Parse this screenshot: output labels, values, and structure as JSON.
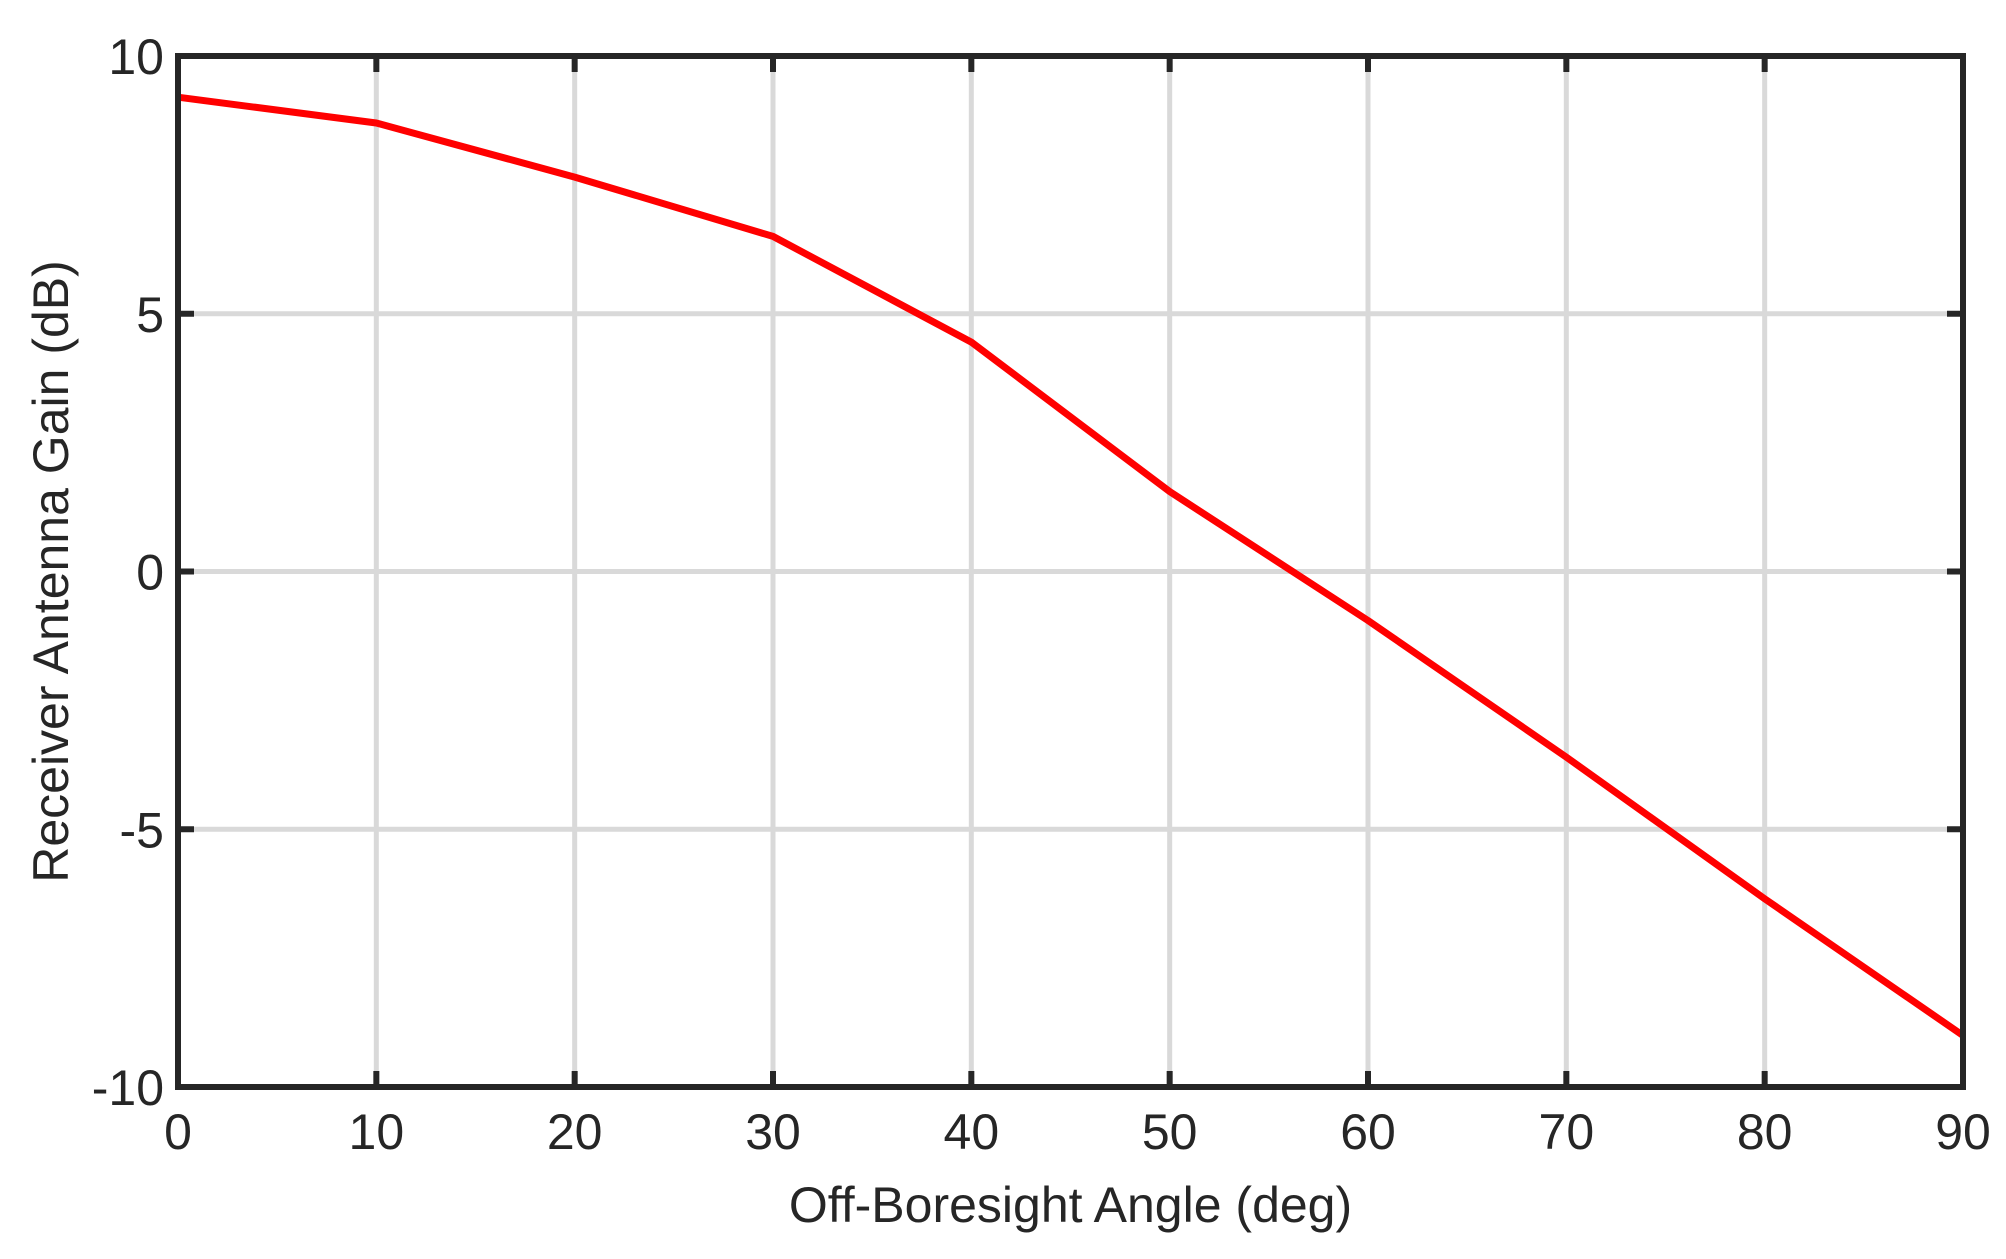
{
  "chart_data": {
    "type": "line",
    "xlabel": "Off-Boresight Angle (deg)",
    "ylabel": "Receiver Antenna Gain (dB)",
    "xlim": [
      0,
      90
    ],
    "ylim": [
      -10,
      10
    ],
    "x_ticks": [
      "0",
      "10",
      "20",
      "30",
      "40",
      "50",
      "60",
      "70",
      "80",
      "90"
    ],
    "y_ticks": [
      "-10",
      "-5",
      "0",
      "5",
      "10"
    ],
    "grid": true,
    "series": [
      {
        "color": "#ff0000",
        "x": [
          0,
          10,
          20,
          30,
          40,
          50,
          60,
          70,
          80,
          90
        ],
        "y": [
          9.2,
          8.7,
          7.65,
          6.5,
          4.45,
          1.55,
          -0.95,
          -3.6,
          -6.35,
          -9.0
        ]
      }
    ]
  }
}
